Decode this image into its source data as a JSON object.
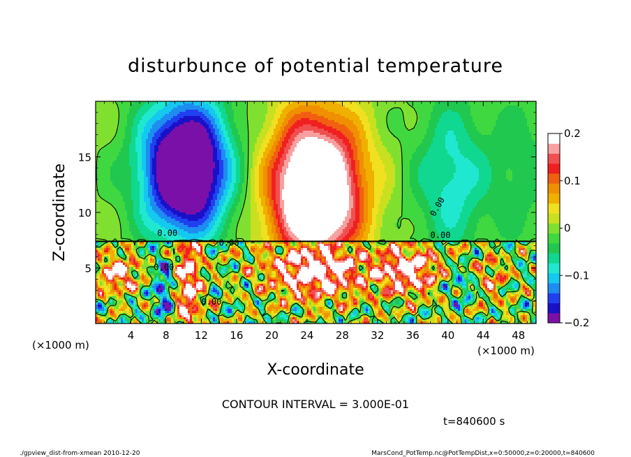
{
  "chart_data": {
    "type": "heatmap",
    "title": "disturbunce of potential temperature",
    "xlabel": "X-coordinate",
    "ylabel": "Z-coordinate",
    "x_unit_left": "(×1000 m)",
    "x_unit_right": "(×1000 m)",
    "xlim": [
      0,
      50
    ],
    "ylim": [
      0,
      20
    ],
    "x_ticks": [
      4,
      8,
      12,
      16,
      20,
      24,
      28,
      32,
      36,
      40,
      44,
      48
    ],
    "y_ticks": [
      5,
      10,
      15
    ],
    "colorbar": {
      "range": [
        -0.2,
        0.2
      ],
      "ticks": [
        0.2,
        0.1,
        0,
        -0.1,
        -0.2
      ],
      "tick_labels": [
        "0.2",
        "0.1",
        "0",
        "−0.1",
        "−0.2"
      ],
      "colors": [
        "#7b10a8",
        "#1a10c8",
        "#2040f0",
        "#1e8cf0",
        "#14c8f0",
        "#20e8d0",
        "#10d890",
        "#20c850",
        "#40d840",
        "#80e030",
        "#c8e020",
        "#f0e020",
        "#f0b000",
        "#f09000",
        "#f06010",
        "#f02020",
        "#f05050",
        "#f8a0a0",
        "#ffffff"
      ]
    },
    "contour_interval": "CONTOUR INTERVAL = 3.000E-01",
    "contour_labels": [
      "0.00",
      "0.00",
      "0.00",
      "0.00",
      "0.00",
      "0.00"
    ],
    "time_label": "t=840600 s",
    "features": [
      {
        "name": "cold plume",
        "x_center": 10,
        "z_center": 14,
        "value_min": -0.2
      },
      {
        "name": "warm plume",
        "x_center": 25,
        "z_center": 12,
        "value_max": 0.2
      },
      {
        "name": "cold patch",
        "x_center": 40,
        "z_center": 13,
        "value_min": -0.08
      },
      {
        "name": "mixed layer top",
        "z": 7.4
      }
    ]
  },
  "footer": {
    "left": "./gpview_dist-from-xmean  2010-12-20",
    "right": "MarsCond_PotTemp.nc@PotTempDist,x=0:50000,z=0:20000,t=840600"
  }
}
